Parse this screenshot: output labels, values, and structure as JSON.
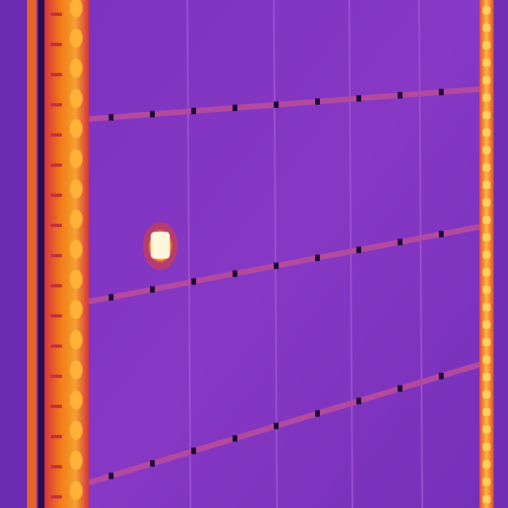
{
  "image": {
    "kind": "thermal-infrared-photo",
    "subject": "solar-panel-array",
    "anomaly": "hotspot"
  },
  "palette": {
    "background": "#6a2bb0",
    "panel_cell": "#7f35c0",
    "panel_cell_alt": "#8a3ac6",
    "cell_gap": "#9b4bd0",
    "busbar": "#b44aa0",
    "busbar_mark": "#1a0830",
    "frame_hot": "#f07a18",
    "frame_glow": "#d4333f",
    "frame_bright": "#ffb840",
    "hotspot_core": "#fff4d6",
    "hotspot_ring": "#ff6a1a"
  }
}
